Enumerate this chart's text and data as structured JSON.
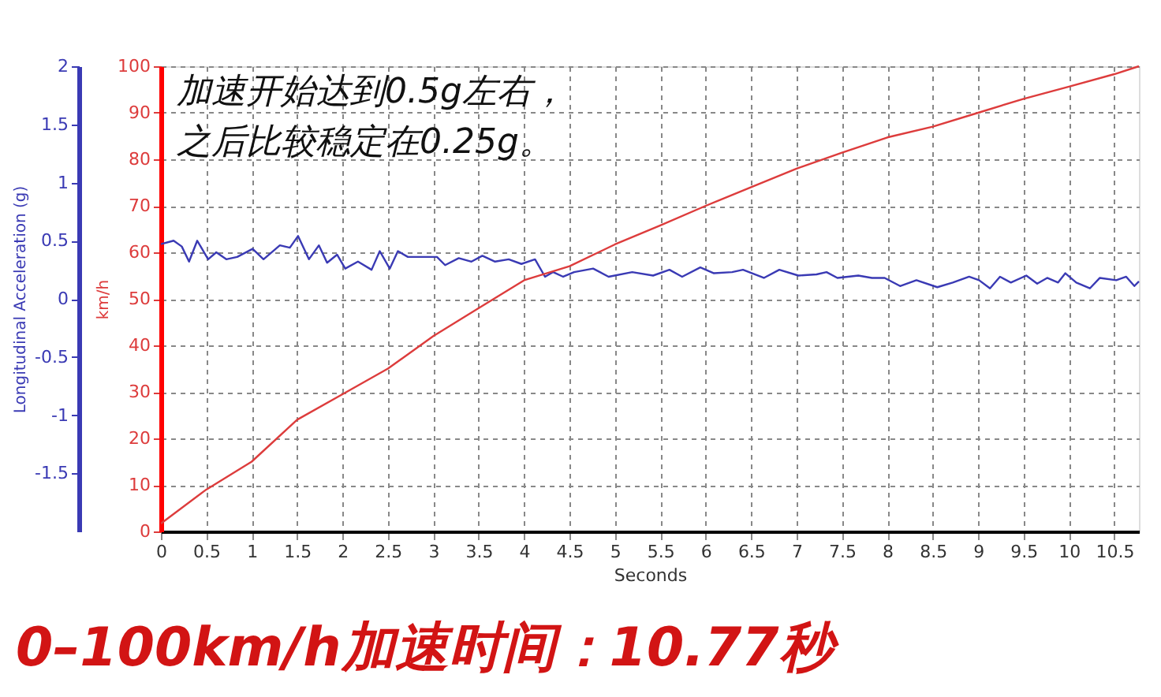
{
  "chart_data": {
    "type": "line",
    "title": "0–100km/h加速时间：10.77秒",
    "annotations": [
      "加速开始达到0.5g左右，",
      "之后比较稳定在0.25g。"
    ],
    "xlabel": "Seconds",
    "ylabel": "Longitudinal Acceleration (g)",
    "y2label": "km/h",
    "xlim": [
      0,
      10.77
    ],
    "xticks": [
      0,
      0.5,
      1,
      1.5,
      2,
      2.5,
      3,
      3.5,
      4,
      4.5,
      5,
      5.5,
      6,
      6.5,
      7,
      7.5,
      8,
      8.5,
      9,
      9.5,
      10,
      10.5
    ],
    "ylim": [
      -2,
      2
    ],
    "yticks": [
      -1.5,
      -1,
      -0.5,
      0,
      0.5,
      1,
      1.5,
      2
    ],
    "y2lim": [
      0,
      100
    ],
    "y2ticks": [
      0,
      10,
      20,
      30,
      40,
      50,
      60,
      70,
      80,
      90,
      100
    ],
    "grid": true,
    "marker": "none",
    "line_style": "solid",
    "series": [
      {
        "color": "#3a3ab4",
        "axis": "y",
        "x": [
          0,
          0.14,
          0.23,
          0.31,
          0.4,
          0.52,
          0.61,
          0.72,
          0.84,
          1.01,
          1.13,
          1.31,
          1.42,
          1.51,
          1.63,
          1.74,
          1.83,
          1.94,
          2.03,
          2.17,
          2.32,
          2.41,
          2.52,
          2.61,
          2.72,
          3.04,
          3.13,
          3.28,
          3.42,
          3.54,
          3.68,
          3.83,
          3.97,
          4.12,
          4.23,
          4.32,
          4.43,
          4.55,
          4.76,
          4.93,
          5.19,
          5.42,
          5.6,
          5.74,
          5.94,
          6.09,
          6.29,
          6.41,
          6.64,
          6.81,
          7.02,
          7.22,
          7.33,
          7.45,
          7.68,
          7.83,
          7.97,
          8.14,
          8.32,
          8.55,
          8.72,
          8.9,
          9.01,
          9.13,
          9.24,
          9.36,
          9.53,
          9.65,
          9.76,
          9.88,
          9.96,
          10.08,
          10.23,
          10.34,
          10.52,
          10.63,
          10.72,
          10.77
        ],
        "values": [
          0.47,
          0.5,
          0.45,
          0.32,
          0.5,
          0.34,
          0.4,
          0.34,
          0.36,
          0.43,
          0.34,
          0.46,
          0.44,
          0.54,
          0.34,
          0.46,
          0.31,
          0.38,
          0.26,
          0.32,
          0.25,
          0.41,
          0.26,
          0.41,
          0.36,
          0.36,
          0.29,
          0.35,
          0.32,
          0.37,
          0.32,
          0.34,
          0.3,
          0.34,
          0.19,
          0.23,
          0.19,
          0.23,
          0.26,
          0.19,
          0.23,
          0.2,
          0.25,
          0.19,
          0.27,
          0.22,
          0.23,
          0.25,
          0.18,
          0.25,
          0.2,
          0.21,
          0.23,
          0.18,
          0.2,
          0.18,
          0.18,
          0.11,
          0.16,
          0.1,
          0.14,
          0.19,
          0.16,
          0.09,
          0.19,
          0.14,
          0.2,
          0.13,
          0.18,
          0.14,
          0.22,
          0.14,
          0.09,
          0.18,
          0.16,
          0.19,
          0.11,
          0.15
        ]
      },
      {
        "color": "#dd3c3c",
        "axis": "y2",
        "x": [
          0,
          0.5,
          1,
          1.5,
          2,
          2.5,
          3,
          3.5,
          4,
          4.5,
          5,
          5.5,
          6,
          6.5,
          7,
          7.5,
          8,
          8.5,
          9,
          9.5,
          10,
          10.5,
          10.77
        ],
        "values": [
          1.7,
          9,
          15,
          24,
          29.5,
          35,
          42,
          48,
          54,
          57,
          61.7,
          65.8,
          70,
          74,
          78,
          81.4,
          84.7,
          87,
          90,
          93,
          95.6,
          98.3,
          100
        ]
      }
    ]
  }
}
